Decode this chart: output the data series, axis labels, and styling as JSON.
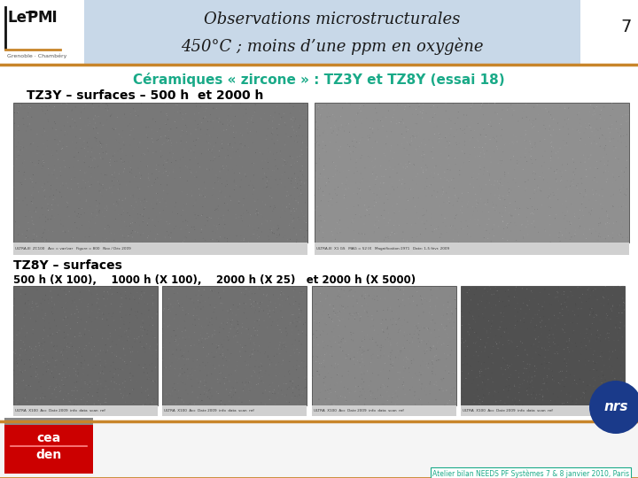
{
  "title_line1": "Observations microstructurales",
  "title_line2": "450°C ; moins d’une ppm en oxygène",
  "slide_number": "7",
  "subtitle": "Céramiques « zircone » : TZ3Y et TZ8Y (essai 18)",
  "tz3y_label": "TZ3Y – surfaces – 500 h  et 2000 h",
  "tz8y_label1": "TZ8Y – surfaces",
  "tz8y_label2": "500 h (X 100),    1000 h (X 100),    2000 h (X 25)   et 2000 h (X 5000)",
  "footer_text": "Atelier bilan NEEDS PF Systèmes 7 & 8 janvier 2010, Paris",
  "bg_color": "#ffffff",
  "header_bg": "#c8d8e8",
  "header_border": "#c8852a",
  "subtitle_color": "#1aaa88",
  "tz_label_color": "#000000",
  "footer_color": "#1aaa88",
  "cea_bg": "#cc0000",
  "nrs_color": "#1a3a8a",
  "img1_gray": "#787878",
  "img2_gray": "#909090",
  "img_bot_grays": [
    "#686868",
    "#707070",
    "#888888",
    "#505050"
  ]
}
